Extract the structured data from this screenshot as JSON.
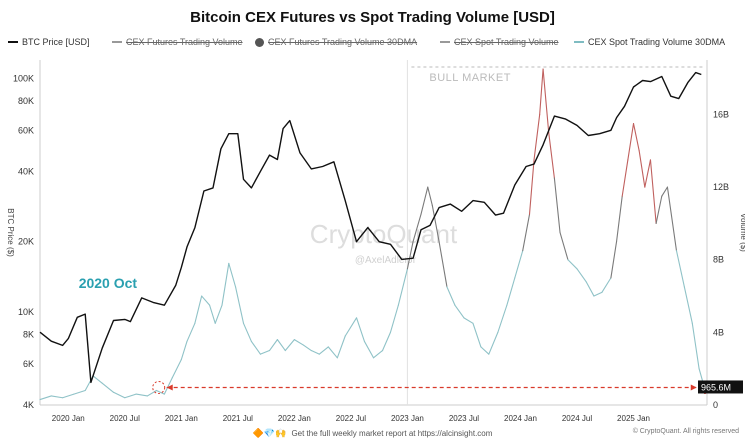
{
  "title": "Bitcoin CEX Futures vs Spot Trading Volume [USD]",
  "legend": [
    {
      "label": "BTC Price [USD]",
      "style": "line",
      "color": "#111111",
      "struck": false
    },
    {
      "label": "CEX Futures Trading Volume",
      "style": "line",
      "color": "#999999",
      "struck": true
    },
    {
      "label": "CEX Futures Trading Volume 30DMA",
      "style": "dot",
      "color": "#555555",
      "struck": true
    },
    {
      "label": "CEX Spot Trading Volume",
      "style": "line",
      "color": "#999999",
      "struck": true
    },
    {
      "label": "CEX Spot Trading Volume 30DMA",
      "style": "line",
      "color": "#7fbcc2",
      "struck": false
    }
  ],
  "colors": {
    "btc": "#111111",
    "spot": "#8fc2c7",
    "spot_high": "#7a7a7a",
    "spot_peak": "#c0605e",
    "arrow": "#d93a2b",
    "annotation": "#2aa0b0"
  },
  "footer": {
    "icons": "🔶💎🙌",
    "text": "Get the full weekly market report at https://alcinsight.com"
  },
  "copyright": "© CryptoQuant. All rights reserved",
  "chart_data": {
    "type": "line",
    "x_tick_labels": [
      "2020 Jan",
      "2020 Jul",
      "2021 Jan",
      "2021 Jul",
      "2022 Jan",
      "2022 Jul",
      "2023 Jan",
      "2023 Jul",
      "2024 Jan",
      "2024 Jul",
      "2025 Jan"
    ],
    "x_range": [
      2019.75,
      2025.65
    ],
    "left_axis": {
      "label": "BTC Price ($)",
      "scale": "log",
      "range": [
        4000,
        120000
      ],
      "ticks": [
        4000,
        6000,
        8000,
        10000,
        20000,
        40000,
        60000,
        80000,
        100000
      ],
      "tick_labels": [
        "4K",
        "6K",
        "8K",
        "10K",
        "20K",
        "40K",
        "60K",
        "80K",
        "100K"
      ]
    },
    "right_axis": {
      "label": "Volume ($)",
      "scale": "linear",
      "range": [
        0,
        19
      ],
      "ticks": [
        0,
        4,
        8,
        12,
        16
      ],
      "tick_labels": [
        "0",
        "4B",
        "8B",
        "12B",
        "16B"
      ]
    },
    "series": [
      {
        "name": "BTC Price [USD]",
        "axis": "left",
        "x": [
          2019.75,
          2019.85,
          2019.95,
          2020.0,
          2020.08,
          2020.15,
          2020.2,
          2020.3,
          2020.4,
          2020.5,
          2020.55,
          2020.65,
          2020.75,
          2020.85,
          2020.95,
          2021.0,
          2021.05,
          2021.12,
          2021.2,
          2021.28,
          2021.35,
          2021.42,
          2021.5,
          2021.55,
          2021.62,
          2021.7,
          2021.78,
          2021.85,
          2021.9,
          2021.96,
          2022.05,
          2022.15,
          2022.25,
          2022.35,
          2022.45,
          2022.55,
          2022.65,
          2022.75,
          2022.85,
          2022.95,
          2023.05,
          2023.12,
          2023.2,
          2023.28,
          2023.38,
          2023.48,
          2023.58,
          2023.68,
          2023.78,
          2023.85,
          2023.95,
          2024.05,
          2024.12,
          2024.2,
          2024.3,
          2024.4,
          2024.5,
          2024.6,
          2024.7,
          2024.8,
          2024.85,
          2024.92,
          2025.0,
          2025.08,
          2025.15,
          2025.25,
          2025.33,
          2025.4,
          2025.48,
          2025.55,
          2025.6
        ],
        "y": [
          8200,
          7500,
          7200,
          7700,
          9500,
          9800,
          5000,
          7000,
          9200,
          9300,
          9100,
          11500,
          11000,
          10700,
          13000,
          15500,
          19000,
          23000,
          33000,
          34000,
          50000,
          58000,
          58000,
          37000,
          34000,
          40000,
          47000,
          45000,
          61000,
          66000,
          48000,
          41000,
          42000,
          44000,
          30000,
          20000,
          23000,
          20000,
          19500,
          16800,
          17000,
          22500,
          23500,
          28000,
          29000,
          27000,
          30000,
          29500,
          26000,
          26500,
          35000,
          42000,
          43000,
          52000,
          69000,
          67000,
          63000,
          57000,
          58000,
          60000,
          68000,
          76000,
          92000,
          98000,
          97000,
          102000,
          84000,
          82000,
          96000,
          106000,
          104000
        ]
      },
      {
        "name": "CEX Spot Trading Volume 30DMA",
        "axis": "right",
        "x": [
          2019.75,
          2019.85,
          2019.95,
          2020.05,
          2020.15,
          2020.22,
          2020.3,
          2020.4,
          2020.5,
          2020.6,
          2020.7,
          2020.78,
          2020.85,
          2020.92,
          2021.0,
          2021.05,
          2021.12,
          2021.18,
          2021.25,
          2021.3,
          2021.36,
          2021.42,
          2021.48,
          2021.55,
          2021.62,
          2021.7,
          2021.78,
          2021.85,
          2021.92,
          2022.0,
          2022.08,
          2022.15,
          2022.22,
          2022.3,
          2022.38,
          2022.45,
          2022.55,
          2022.62,
          2022.7,
          2022.78,
          2022.85,
          2022.92,
          2023.0,
          2023.05,
          2023.12,
          2023.18,
          2023.22,
          2023.28,
          2023.35,
          2023.42,
          2023.5,
          2023.58,
          2023.65,
          2023.72,
          2023.8,
          2023.88,
          2023.95,
          2024.02,
          2024.08,
          2024.12,
          2024.17,
          2024.2,
          2024.25,
          2024.3,
          2024.35,
          2024.42,
          2024.5,
          2024.58,
          2024.65,
          2024.72,
          2024.8,
          2024.85,
          2024.9,
          2024.95,
          2025.0,
          2025.05,
          2025.1,
          2025.15,
          2025.2,
          2025.25,
          2025.3,
          2025.38,
          2025.45,
          2025.52,
          2025.58,
          2025.63
        ],
        "y": [
          0.3,
          0.5,
          0.4,
          0.6,
          0.8,
          1.6,
          1.2,
          0.7,
          0.4,
          0.6,
          0.5,
          0.8,
          0.6,
          1.5,
          2.5,
          3.5,
          4.5,
          6.0,
          5.5,
          4.5,
          5.5,
          7.8,
          6.5,
          4.5,
          3.5,
          2.8,
          3.0,
          3.6,
          3.0,
          3.6,
          3.3,
          3.0,
          2.8,
          3.2,
          2.6,
          3.8,
          4.8,
          3.5,
          2.6,
          3.0,
          4.0,
          5.5,
          7.5,
          9.0,
          10.5,
          12.0,
          11.0,
          9.0,
          6.5,
          5.5,
          4.8,
          4.5,
          3.2,
          2.8,
          4.0,
          5.5,
          7.0,
          8.5,
          10.5,
          13.5,
          16.0,
          18.5,
          15.0,
          12.5,
          9.5,
          8.0,
          7.5,
          6.8,
          6.0,
          6.2,
          7.0,
          9.0,
          11.5,
          13.5,
          15.5,
          14.0,
          12.0,
          13.5,
          10.0,
          11.5,
          12.0,
          8.5,
          6.5,
          4.5,
          2.0,
          0.9
        ]
      }
    ],
    "annotations": [
      {
        "text": "BULL MARKET",
        "from_x": 2023.0,
        "to_x": 2025.65
      },
      {
        "text": "2020 Oct",
        "at_x": 2020.8
      },
      {
        "text": "965.6M",
        "at_x": 2025.63,
        "value": 0.9656
      }
    ],
    "arrow": {
      "from_x": 2020.8,
      "to_x": 2025.63,
      "y_value": 0.9656,
      "style": "dashed"
    },
    "watermark": "CryptoQuant",
    "watermark_handle": "@AxelAdlerJr"
  }
}
